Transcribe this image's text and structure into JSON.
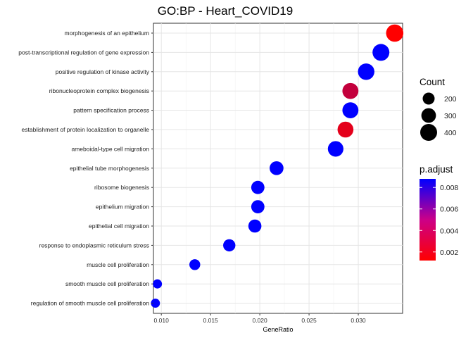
{
  "chart_data": {
    "type": "scatter",
    "title": "GO:BP - Heart_COVID19",
    "xlabel": "GeneRatio",
    "ylabel": "",
    "xlim": [
      0.0092,
      0.0345
    ],
    "x_ticks": [
      0.01,
      0.015,
      0.02,
      0.025,
      0.03
    ],
    "x_tick_labels": [
      "0.010",
      "0.015",
      "0.020",
      "0.025",
      "0.030"
    ],
    "grid": true,
    "points": [
      {
        "term": "morphogenesis of an epithelium",
        "gene_ratio": 0.0337,
        "count": 420,
        "p_adjust": 0.0012
      },
      {
        "term": "post-transcriptional regulation of gene expression",
        "gene_ratio": 0.0323,
        "count": 400,
        "p_adjust": 0.0088
      },
      {
        "term": "positive regulation of kinase activity",
        "gene_ratio": 0.0308,
        "count": 380,
        "p_adjust": 0.0088
      },
      {
        "term": "ribonucleoprotein complex biogenesis",
        "gene_ratio": 0.0292,
        "count": 360,
        "p_adjust": 0.003
      },
      {
        "term": "pattern specification process",
        "gene_ratio": 0.0292,
        "count": 360,
        "p_adjust": 0.0088
      },
      {
        "term": "establishment of protein localization to organelle",
        "gene_ratio": 0.0287,
        "count": 355,
        "p_adjust": 0.002
      },
      {
        "term": "ameboidal-type cell migration",
        "gene_ratio": 0.0277,
        "count": 340,
        "p_adjust": 0.0088
      },
      {
        "term": "epithelial tube morphogenesis",
        "gene_ratio": 0.0217,
        "count": 270,
        "p_adjust": 0.0088
      },
      {
        "term": "ribosome biogenesis",
        "gene_ratio": 0.0198,
        "count": 245,
        "p_adjust": 0.0088
      },
      {
        "term": "epithelium migration",
        "gene_ratio": 0.0198,
        "count": 245,
        "p_adjust": 0.0088
      },
      {
        "term": "epithelial cell migration",
        "gene_ratio": 0.0195,
        "count": 240,
        "p_adjust": 0.0088
      },
      {
        "term": "response to endoplasmic reticulum stress",
        "gene_ratio": 0.0169,
        "count": 210,
        "p_adjust": 0.0088
      },
      {
        "term": "muscle cell proliferation",
        "gene_ratio": 0.0134,
        "count": 165,
        "p_adjust": 0.0088
      },
      {
        "term": "smooth muscle cell proliferation",
        "gene_ratio": 0.0096,
        "count": 118,
        "p_adjust": 0.0088
      },
      {
        "term": "regulation of smooth muscle cell proliferation",
        "gene_ratio": 0.0094,
        "count": 115,
        "p_adjust": 0.0088
      }
    ],
    "legend_count": {
      "title": "Count",
      "values": [
        200,
        300,
        400
      ],
      "labels": [
        "200",
        "300",
        "400"
      ]
    },
    "legend_color": {
      "title": "p.adjust",
      "min": 0.0012,
      "max": 0.0088,
      "ticks": [
        0.002,
        0.004,
        0.006,
        0.008
      ],
      "tick_labels": [
        "0.002",
        "0.004",
        "0.006",
        "0.008"
      ],
      "low_color": "#ff0000",
      "high_color": "#0000ff"
    },
    "legend_placement": "right"
  }
}
